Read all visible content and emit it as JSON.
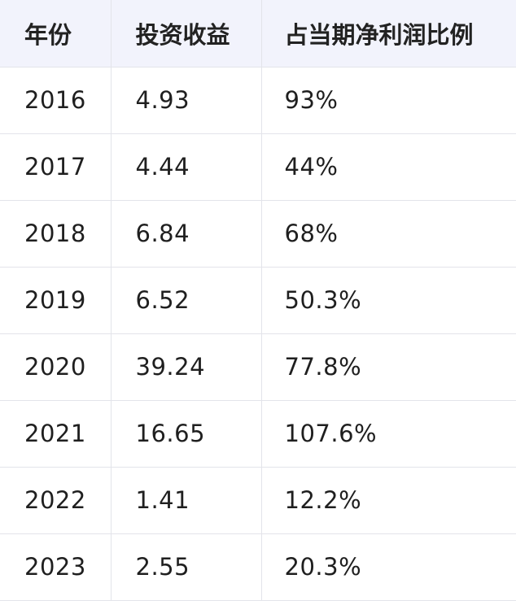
{
  "chart_data": {
    "type": "table",
    "columns": [
      "年份",
      "投资收益",
      "占当期净利润比例"
    ],
    "rows": [
      [
        "2016",
        "4.93",
        "93%"
      ],
      [
        "2017",
        "4.44",
        "44%"
      ],
      [
        "2018",
        "6.84",
        "68%"
      ],
      [
        "2019",
        "6.52",
        "50.3%"
      ],
      [
        "2020",
        "39.24",
        "77.8%"
      ],
      [
        "2021",
        "16.65",
        "107.6%"
      ],
      [
        "2022",
        "1.41",
        "12.2%"
      ],
      [
        "2023",
        "2.55",
        "20.3%"
      ]
    ]
  }
}
